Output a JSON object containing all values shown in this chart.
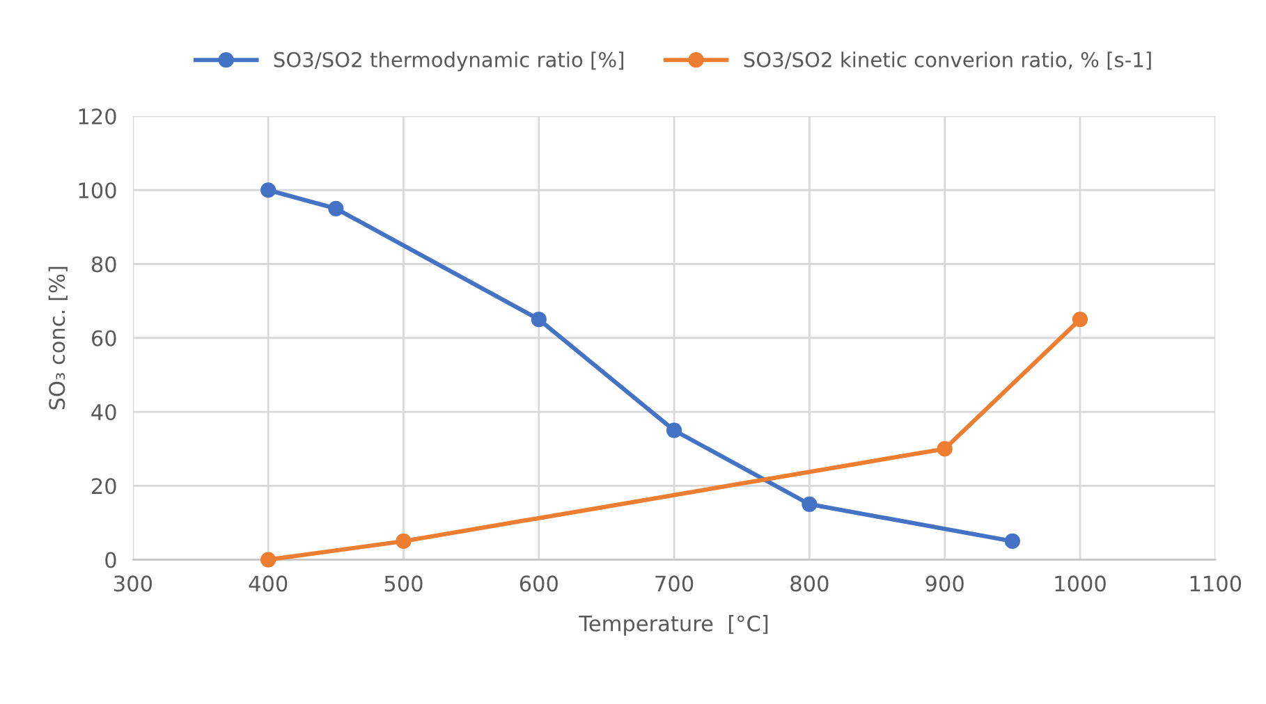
{
  "chart_data": {
    "type": "line",
    "xlabel": "Temperature  [°C]",
    "ylabel": "SO₃ conc. [%]",
    "series": [
      {
        "name": "SO3/SO2 thermodynamic ratio [%]",
        "color": "#4472c4",
        "x": [
          400,
          450,
          600,
          700,
          800,
          950
        ],
        "values": [
          100,
          95,
          65,
          35,
          15,
          5
        ]
      },
      {
        "name": "SO3/SO2 kinetic converion ratio, % [s-1]",
        "color": "#ed7d31",
        "x": [
          400,
          500,
          900,
          1000
        ],
        "values": [
          0,
          5,
          30,
          65
        ]
      }
    ],
    "xlim": [
      300,
      1100
    ],
    "xticks": [
      300,
      400,
      500,
      600,
      700,
      800,
      900,
      1000,
      1100
    ],
    "ylim": [
      0,
      120
    ],
    "yticks": [
      0,
      20,
      40,
      60,
      80,
      100,
      120
    ],
    "grid": true,
    "legend": "top",
    "marker": "circle",
    "line_style": "solid"
  }
}
